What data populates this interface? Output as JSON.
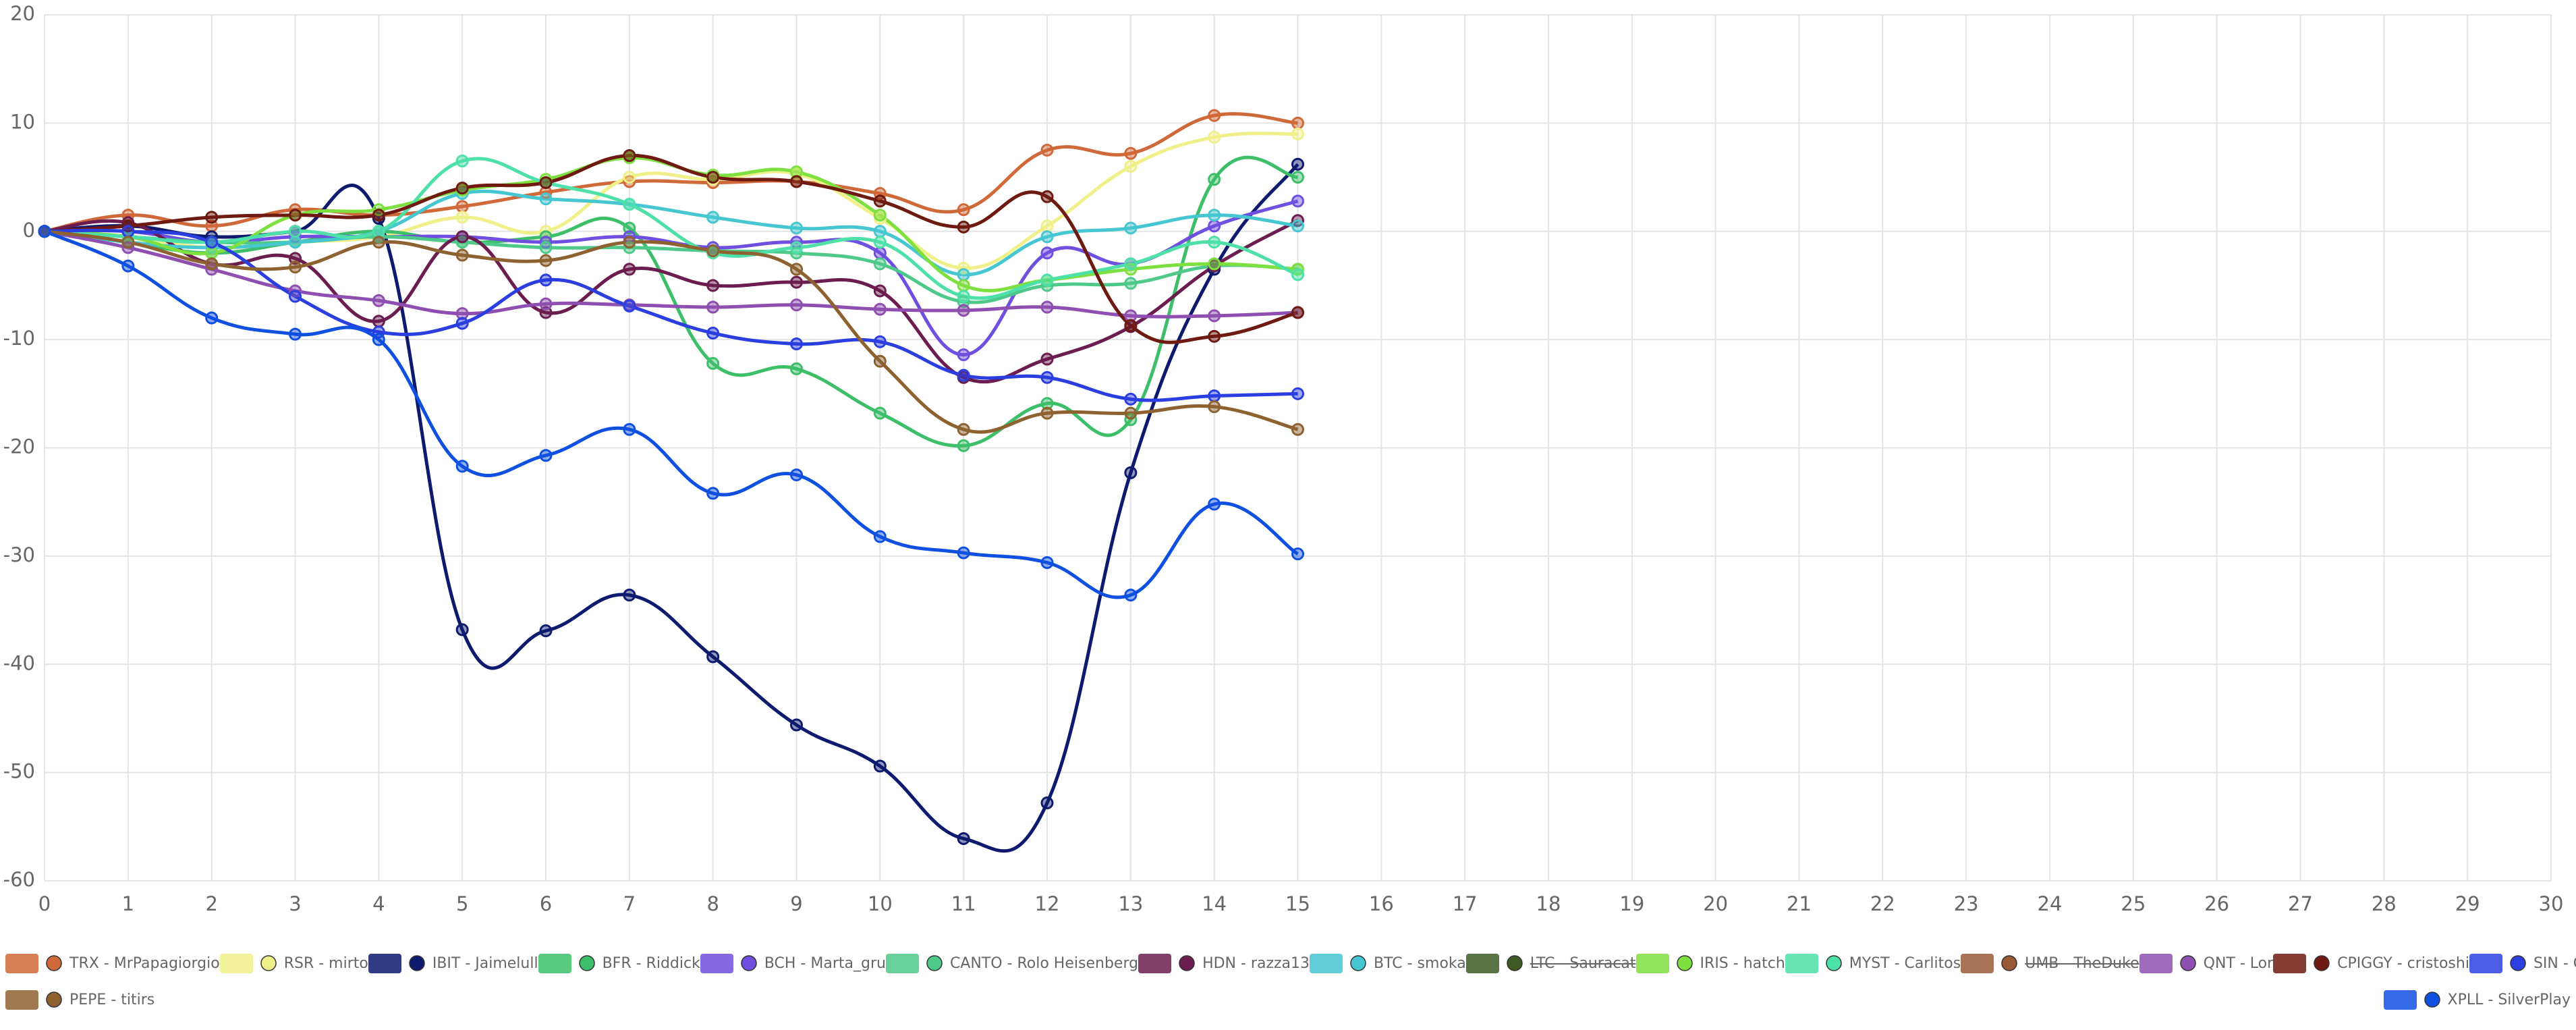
{
  "chart_data": {
    "type": "line",
    "x": [
      0,
      1,
      2,
      3,
      4,
      5,
      6,
      7,
      8,
      9,
      10,
      11,
      12,
      13,
      14,
      15
    ],
    "xlim": [
      0,
      30
    ],
    "xticks": [
      0,
      1,
      2,
      3,
      4,
      5,
      6,
      7,
      8,
      9,
      10,
      11,
      12,
      13,
      14,
      15,
      16,
      17,
      18,
      19,
      20,
      21,
      22,
      23,
      24,
      25,
      26,
      27,
      28,
      29,
      30
    ],
    "ylim": [
      -60,
      20
    ],
    "yticks": [
      -60,
      -50,
      -40,
      -30,
      -20,
      -10,
      0,
      10,
      20
    ],
    "grid": true,
    "legend": "bottom",
    "series": [
      {
        "name": "TRX - MrPapagiorgio",
        "color": "#d0693a",
        "values": [
          0,
          1.5,
          0.5,
          2,
          1.5,
          2.3,
          3.6,
          4.6,
          4.5,
          4.6,
          3.5,
          2,
          7.5,
          7.2,
          10.7,
          10
        ]
      },
      {
        "name": "RSR - mirto",
        "color": "#f0f08a",
        "values": [
          0,
          -0.5,
          -1.5,
          -1,
          -0.5,
          1.3,
          0,
          5,
          4.8,
          5.3,
          1.2,
          -3.4,
          0.5,
          6,
          8.7,
          9
        ]
      },
      {
        "name": "IBIT - Jaimelull",
        "color": "#0d1a6e",
        "values": [
          0,
          0.5,
          -0.5,
          0,
          1.2,
          -36.8,
          -36.9,
          -33.6,
          -39.3,
          -45.6,
          -49.4,
          -56.1,
          -52.8,
          -22.3,
          -3.5,
          6.2
        ]
      },
      {
        "name": "BFR - Riddick",
        "color": "#3dbf6a",
        "values": [
          0,
          -1,
          -2,
          -1,
          0,
          -1,
          -0.5,
          0.3,
          -12.2,
          -12.7,
          -16.8,
          -19.8,
          -15.9,
          -17.4,
          4.8,
          5
        ]
      },
      {
        "name": "BCH - Marta_gru",
        "color": "#6e4fe0",
        "values": [
          0,
          0,
          -1,
          -0.5,
          -0.5,
          -0.5,
          -1,
          -0.5,
          -1.5,
          -1,
          -2,
          -11.4,
          -2,
          -3,
          0.5,
          2.8
        ]
      },
      {
        "name": "CANTO - Rolo Heisenberg",
        "color": "#4ec98a",
        "values": [
          0,
          -0.5,
          -1,
          -1,
          -0.5,
          -1,
          -1.5,
          -1.5,
          -1.8,
          -2,
          -3,
          -6.5,
          -5,
          -4.8,
          -3.2,
          -3.5
        ]
      },
      {
        "name": "HDN - razza13",
        "color": "#6b1d4f",
        "values": [
          0,
          0.8,
          -3,
          -2.5,
          -8.3,
          -0.5,
          -7.5,
          -3.5,
          -5,
          -4.7,
          -5.5,
          -13.5,
          -11.8,
          -8.8,
          -3.2,
          1
        ]
      },
      {
        "name": "BTC - smoka",
        "color": "#45c6d0",
        "values": [
          0,
          -1,
          -1.5,
          -1,
          0,
          3.5,
          3,
          2.5,
          1.3,
          0.3,
          0,
          -4,
          -0.5,
          0.3,
          1.5,
          0.5
        ]
      },
      {
        "name": "LTC - Sauracat",
        "color": "#3d5a22",
        "hidden": true
      },
      {
        "name": "IRIS - hatch",
        "color": "#7ee040",
        "values": [
          0,
          -0.5,
          -2,
          1.5,
          2,
          3.8,
          4.8,
          6.8,
          5.2,
          5.5,
          1.5,
          -5,
          -4.5,
          -3.5,
          -3,
          -3.5
        ]
      },
      {
        "name": "MYST - Carlitos",
        "color": "#4de0a8",
        "values": [
          0,
          -0.5,
          -1,
          0,
          0,
          6.5,
          4.5,
          2.5,
          -2,
          -1.5,
          -1,
          -6,
          -4.5,
          -3,
          -1,
          -4
        ]
      },
      {
        "name": "UMB - TheDuke",
        "color": "#9a5a3a",
        "hidden": true
      },
      {
        "name": "QNT - Lor",
        "color": "#8e4fb0",
        "values": [
          0,
          -1.5,
          -3.5,
          -5.5,
          -6.4,
          -7.6,
          -6.7,
          -6.8,
          -7,
          -6.8,
          -7.2,
          -7.3,
          -7,
          -7.8,
          -7.8,
          -7.5
        ]
      },
      {
        "name": "CPIGGY - cristoshi",
        "color": "#6e1a10",
        "values": [
          0,
          0.5,
          1.3,
          1.5,
          1.5,
          4,
          4.5,
          7,
          5,
          4.6,
          2.8,
          0.4,
          3.2,
          -8.7,
          -9.7,
          -7.5
        ]
      },
      {
        "name": "SIN - Calamar",
        "color": "#2b3fe0",
        "values": [
          0,
          0,
          -1,
          -6,
          -9.3,
          -8.5,
          -4.5,
          -6.9,
          -9.4,
          -10.4,
          -10.2,
          -13.3,
          -13.5,
          -15.5,
          -15.2,
          -15
        ]
      },
      {
        "name": "PEPE - titirs",
        "color": "#8e6230",
        "values": [
          0,
          -1,
          -3,
          -3.3,
          -1,
          -2.2,
          -2.7,
          -1,
          -1.8,
          -3.5,
          -12,
          -18.3,
          -16.8,
          -16.8,
          -16.2,
          -18.3
        ]
      },
      {
        "name": "XPLL - SilverPlay",
        "color": "#1050e0",
        "values": [
          0,
          -3.2,
          -8,
          -9.5,
          -10,
          -21.7,
          -20.7,
          -18.3,
          -24.2,
          -22.5,
          -28.2,
          -29.7,
          -30.6,
          -33.6,
          -25.2,
          -29.8
        ]
      }
    ]
  }
}
